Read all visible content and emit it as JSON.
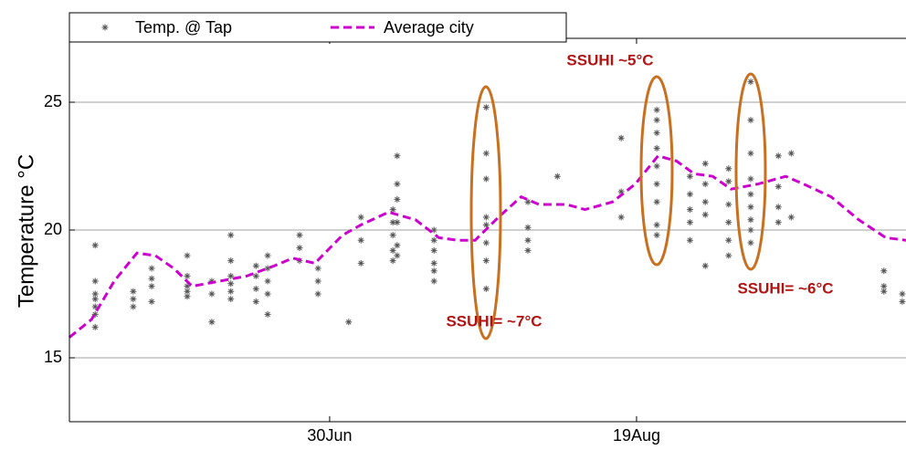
{
  "chart_data": {
    "type": "scatter",
    "ylabel": "Temperature °C",
    "xlim": [
      138.6,
      274.9
    ],
    "xticks": [
      {
        "value": 181,
        "label": "30Jun"
      },
      {
        "value": 231,
        "label": "19Aug"
      }
    ],
    "ylim": [
      12.5,
      27.5
    ],
    "yticks": [
      15,
      20,
      25
    ],
    "grid": true,
    "legend": "top-left",
    "series": [
      {
        "name": "Temp. @ Tap",
        "color": "#555555",
        "style": "markers",
        "x": [
          142.8,
          142.8,
          142.8,
          142.8,
          142.8,
          142.8,
          142.8,
          149.0,
          149.0,
          149.0,
          152.0,
          152.0,
          152.0,
          152.0,
          157.8,
          157.8,
          157.8,
          157.8,
          157.8,
          161.8,
          161.8,
          161.8,
          164.9,
          164.9,
          164.9,
          164.9,
          164.9,
          164.9,
          169.0,
          169.0,
          169.0,
          169.0,
          170.9,
          170.9,
          170.9,
          170.9,
          170.9,
          176.1,
          176.1,
          176.1,
          179.1,
          179.1,
          179.1,
          184.1,
          186.1,
          186.1,
          186.1,
          191.3,
          191.3,
          191.3,
          191.3,
          191.3,
          192.0,
          192.0,
          192.0,
          192.0,
          192.0,
          192.0,
          198.0,
          198.0,
          198.0,
          198.0,
          198.0,
          198.0,
          206.5,
          206.5,
          206.5,
          206.5,
          206.5,
          206.5,
          206.5,
          206.5,
          213.3,
          213.3,
          213.3,
          213.3,
          218.1,
          228.5,
          228.5,
          228.5,
          234.3,
          234.3,
          234.3,
          234.3,
          234.3,
          234.3,
          234.3,
          234.3,
          234.3,
          239.7,
          239.7,
          239.7,
          239.7,
          239.7,
          242.2,
          242.2,
          242.2,
          242.2,
          242.2,
          246.0,
          246.0,
          246.0,
          246.0,
          246.0,
          246.0,
          249.6,
          249.6,
          249.6,
          249.6,
          249.6,
          249.6,
          249.6,
          249.6,
          249.6,
          254.1,
          254.1,
          254.1,
          254.1,
          256.2,
          256.2,
          271.3,
          271.3,
          271.3,
          274.3,
          274.3
        ],
        "values": [
          19.4,
          18.0,
          17.5,
          17.3,
          17.0,
          16.7,
          16.2,
          17.6,
          17.3,
          17.0,
          18.5,
          18.1,
          17.8,
          17.2,
          19.0,
          18.2,
          17.8,
          17.6,
          17.4,
          18.0,
          17.5,
          16.4,
          19.8,
          18.8,
          18.2,
          17.9,
          17.6,
          17.3,
          18.6,
          18.2,
          17.7,
          17.2,
          19.0,
          18.5,
          18.0,
          17.5,
          16.7,
          19.8,
          19.3,
          18.8,
          18.5,
          18.0,
          17.5,
          16.4,
          20.5,
          19.6,
          18.7,
          20.8,
          20.3,
          19.8,
          19.2,
          18.8,
          22.9,
          21.8,
          21.2,
          20.3,
          19.4,
          19.0,
          20.0,
          19.6,
          19.2,
          18.7,
          18.4,
          18.0,
          24.8,
          23.0,
          22.0,
          20.5,
          20.2,
          19.5,
          18.8,
          17.7,
          21.1,
          20.1,
          19.6,
          19.2,
          22.1,
          23.6,
          21.5,
          20.5,
          24.7,
          24.3,
          23.8,
          23.2,
          22.5,
          21.8,
          21.1,
          20.2,
          19.8,
          22.1,
          21.4,
          20.8,
          20.3,
          19.6,
          22.6,
          21.8,
          21.1,
          20.6,
          18.6,
          22.4,
          21.9,
          21.0,
          20.3,
          19.6,
          19.0,
          25.8,
          24.3,
          23.0,
          22.0,
          21.4,
          20.9,
          20.4,
          20.0,
          19.5,
          22.9,
          21.7,
          20.9,
          20.3,
          23.0,
          20.5,
          18.4,
          17.8,
          17.6,
          17.5,
          17.2
        ]
      },
      {
        "name": "Average city",
        "color": "#cc00cc",
        "style": "dashed-line",
        "x": [
          138.6,
          142.2,
          145.9,
          149.6,
          152.6,
          155.6,
          158.6,
          163.1,
          167.5,
          172.0,
          175.0,
          178.6,
          183.1,
          186.1,
          190.6,
          195.0,
          198.8,
          201.8,
          204.7,
          208.5,
          212.2,
          215.1,
          219.6,
          222.6,
          227.1,
          230.8,
          234.5,
          237.5,
          240.4,
          243.4,
          246.4,
          250.8,
          255.3,
          258.2,
          262.7,
          267.2,
          271.6,
          274.9
        ],
        "values": [
          15.8,
          16.5,
          18.0,
          19.1,
          19.0,
          18.5,
          17.8,
          18.0,
          18.2,
          18.6,
          18.9,
          18.7,
          19.8,
          20.2,
          20.7,
          20.4,
          19.7,
          19.6,
          19.6,
          20.5,
          21.3,
          21.0,
          21.0,
          20.8,
          21.1,
          21.8,
          22.9,
          22.7,
          22.2,
          22.1,
          21.6,
          21.8,
          22.1,
          21.8,
          21.3,
          20.4,
          19.7,
          19.6
        ]
      }
    ],
    "annotations": [
      "SSUHI ~5°C",
      "SSUHI= ~7°C",
      "SSUHI= ~6°C"
    ]
  }
}
